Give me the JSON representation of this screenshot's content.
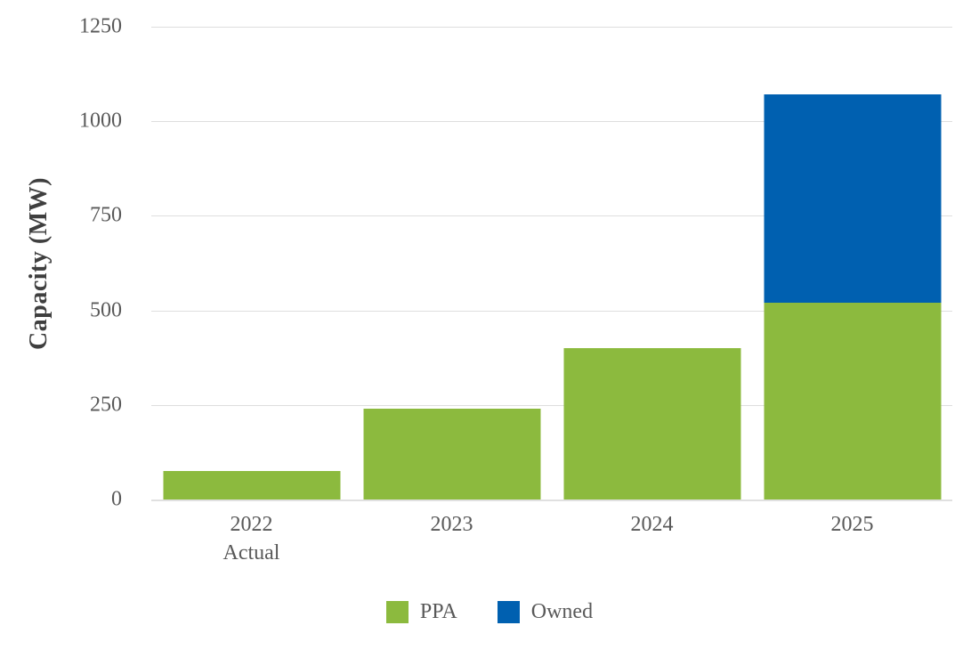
{
  "chart_data": {
    "type": "bar",
    "stacked": true,
    "title": "",
    "xlabel": "",
    "ylabel": "Capacity (MW)",
    "categories": [
      "2022\nActual",
      "2023",
      "2024",
      "2025"
    ],
    "series": [
      {
        "name": "PPA",
        "color": "#8CBA3E",
        "values": [
          75,
          240,
          400,
          520
        ]
      },
      {
        "name": "Owned",
        "color": "#0060B0",
        "values": [
          0,
          0,
          0,
          550
        ]
      }
    ],
    "totals": [
      75,
      240,
      400,
      1070
    ],
    "ylim": [
      0,
      1250
    ],
    "yticks": [
      0,
      250,
      500,
      750,
      1000,
      1250
    ],
    "grid": true,
    "legend_position": "bottom"
  },
  "colors": {
    "ppa_green": "#8CBA3E",
    "owned_blue": "#0060B0",
    "gridline": "#DEDEDE",
    "axis_line": "#E0E0E0",
    "tick_text": "#595959",
    "axis_title_text": "#3F3F3F",
    "background": "#FFFFFF"
  }
}
